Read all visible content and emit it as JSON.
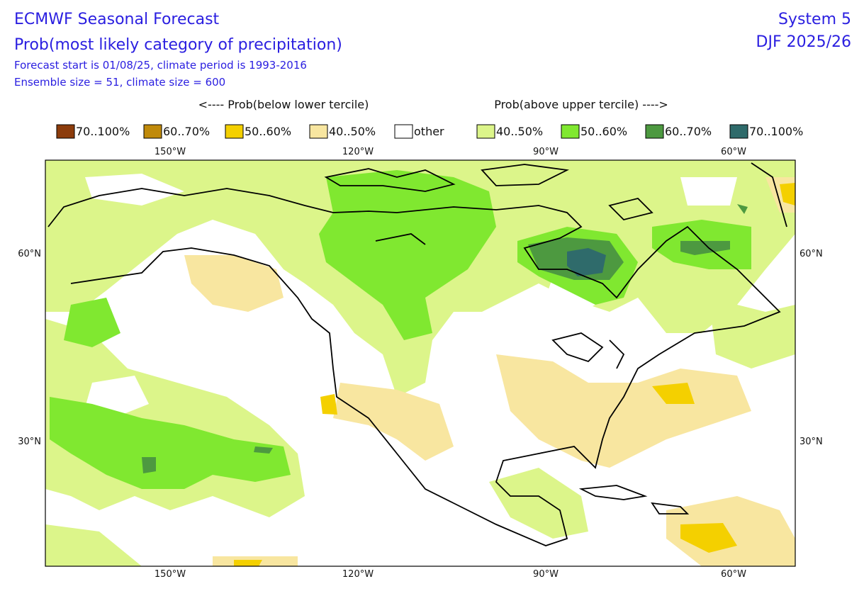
{
  "header": {
    "title": "ECMWF Seasonal Forecast",
    "subtitle": "Prob(most likely category of precipitation)",
    "forecast_info": "Forecast start is 01/08/25, climate period is 1993-2016",
    "ensemble_info": "Ensemble size = 51, climate size = 600",
    "system": "System 5",
    "period": "DJF 2025/26"
  },
  "legend": {
    "below_label": "<---- Prob(below lower tercile)",
    "above_label": "Prob(above upper tercile) ---->",
    "items": [
      {
        "label": "70..100%",
        "color": "#8c3c0c"
      },
      {
        "label": "60..70%",
        "color": "#c08a0a"
      },
      {
        "label": "50..60%",
        "color": "#f4d000"
      },
      {
        "label": "40..50%",
        "color": "#f8e6a0"
      },
      {
        "label": "other",
        "color": "#ffffff"
      },
      {
        "label": "40..50%",
        "color": "#dcf58a"
      },
      {
        "label": "50..60%",
        "color": "#80e830"
      },
      {
        "label": "60..70%",
        "color": "#4d9940"
      },
      {
        "label": "70..100%",
        "color": "#2f6b6b"
      }
    ]
  },
  "map": {
    "lon_labels": [
      "150°W",
      "120°W",
      "90°W",
      "60°W"
    ],
    "lat_labels": [
      "60°N",
      "30°N"
    ]
  }
}
